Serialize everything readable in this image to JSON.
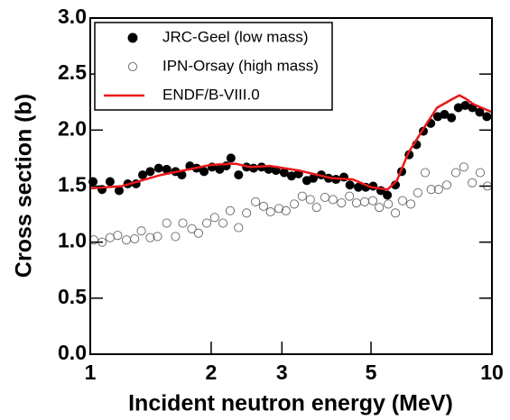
{
  "chart_data": {
    "type": "scatter",
    "xlabel": "Incident neutron energy (MeV)",
    "ylabel": "Cross section (b)",
    "xscale": "log",
    "xlim": [
      1,
      10
    ],
    "xticks": [
      1,
      2,
      3,
      5,
      10
    ],
    "ylim": [
      0,
      3
    ],
    "yticks": [
      {
        "value": 0,
        "label": "0.0"
      },
      0.5,
      {
        "value": 1,
        "label": "1.0"
      },
      1.5,
      {
        "value": 2,
        "label": "2.0"
      },
      2.5,
      {
        "value": 3,
        "label": "3.0"
      }
    ],
    "legend": "upper left",
    "series": [
      {
        "name": "JRC-Geel (low mass)",
        "type": "scatter",
        "marker": "filled",
        "color": "#000000",
        "x": [
          1.016,
          1.07,
          1.12,
          1.18,
          1.24,
          1.3,
          1.35,
          1.41,
          1.48,
          1.55,
          1.63,
          1.69,
          1.77,
          1.84,
          1.92,
          2.01,
          2.1,
          2.18,
          2.24,
          2.34,
          2.45,
          2.55,
          2.67,
          2.78,
          2.9,
          3.04,
          3.17,
          3.3,
          3.46,
          3.59,
          3.76,
          3.92,
          4.09,
          4.28,
          4.43,
          4.65,
          4.85,
          5.06,
          5.29,
          5.49,
          5.75,
          5.96,
          6.22,
          6.49,
          6.75,
          7.04,
          7.33,
          7.62,
          7.93,
          8.25,
          8.58,
          8.94,
          9.32,
          9.71
        ],
        "values": [
          1.54,
          1.47,
          1.54,
          1.46,
          1.52,
          1.52,
          1.6,
          1.63,
          1.66,
          1.65,
          1.63,
          1.6,
          1.68,
          1.66,
          1.63,
          1.67,
          1.65,
          1.68,
          1.75,
          1.6,
          1.67,
          1.66,
          1.67,
          1.65,
          1.64,
          1.62,
          1.59,
          1.61,
          1.55,
          1.57,
          1.6,
          1.57,
          1.56,
          1.58,
          1.51,
          1.49,
          1.49,
          1.5,
          1.46,
          1.42,
          1.51,
          1.63,
          1.78,
          1.87,
          1.99,
          2.06,
          2.12,
          2.14,
          2.11,
          2.2,
          2.22,
          2.2,
          2.16,
          2.12
        ]
      },
      {
        "name": "IPN-Orsay (high mass)",
        "type": "scatter",
        "marker": "open",
        "color": "#666666",
        "x": [
          1.02,
          1.07,
          1.12,
          1.17,
          1.23,
          1.29,
          1.34,
          1.41,
          1.47,
          1.55,
          1.63,
          1.7,
          1.79,
          1.86,
          1.95,
          2.04,
          2.14,
          2.23,
          2.34,
          2.45,
          2.58,
          2.7,
          2.81,
          2.95,
          3.07,
          3.22,
          3.37,
          3.53,
          3.66,
          3.84,
          4.02,
          4.22,
          4.42,
          4.6,
          4.82,
          5.05,
          5.24,
          5.52,
          5.75,
          5.99,
          6.28,
          6.54,
          6.82,
          7.06,
          7.36,
          7.72,
          8.13,
          8.51,
          8.93,
          9.35,
          9.75
        ],
        "values": [
          1.02,
          1.0,
          1.04,
          1.06,
          1.02,
          1.03,
          1.1,
          1.04,
          1.05,
          1.17,
          1.05,
          1.17,
          1.12,
          1.08,
          1.17,
          1.22,
          1.17,
          1.28,
          1.13,
          1.26,
          1.36,
          1.32,
          1.27,
          1.3,
          1.28,
          1.34,
          1.41,
          1.38,
          1.31,
          1.4,
          1.38,
          1.35,
          1.41,
          1.35,
          1.36,
          1.37,
          1.31,
          1.34,
          1.26,
          1.37,
          1.34,
          1.44,
          1.62,
          1.47,
          1.47,
          1.51,
          1.62,
          1.67,
          1.53,
          1.62,
          1.5
        ]
      },
      {
        "name": "ENDF/B-VIII.0",
        "type": "line",
        "color": "#e8191b",
        "x": [
          1,
          1.2,
          1.5,
          2.0,
          2.3,
          2.5,
          2.8,
          3.3,
          4.0,
          4.5,
          5.0,
          5.5,
          5.8,
          6.2,
          6.8,
          7.3,
          8.0,
          8.3,
          8.6,
          9.0,
          10
        ],
        "values": [
          1.48,
          1.5,
          1.6,
          1.69,
          1.7,
          1.67,
          1.68,
          1.64,
          1.57,
          1.56,
          1.49,
          1.47,
          1.55,
          1.8,
          2.03,
          2.2,
          2.28,
          2.31,
          2.28,
          2.23,
          2.16
        ]
      }
    ]
  }
}
